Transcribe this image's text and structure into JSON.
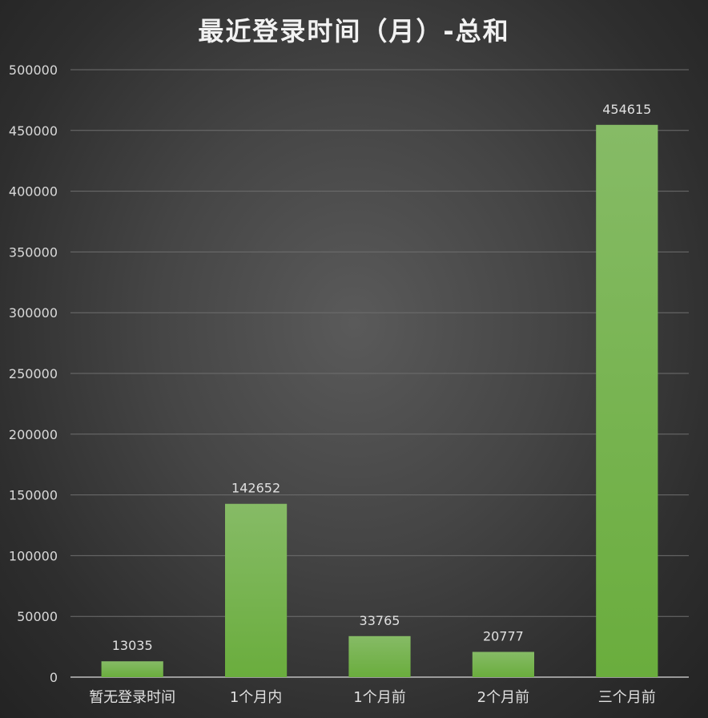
{
  "chart_data": {
    "type": "bar",
    "title": "最近登录时间（月）-总和",
    "categories": [
      "暂无登录时间",
      "1个月内",
      "1个月前",
      "2个月前",
      "三个月前"
    ],
    "values": [
      13035,
      142652,
      33765,
      20777,
      454615
    ],
    "ylim": [
      0,
      500000
    ],
    "yticks": [
      0,
      50000,
      100000,
      150000,
      200000,
      250000,
      300000,
      350000,
      400000,
      450000,
      500000
    ],
    "grid": true,
    "data_labels": true,
    "bar_color": "#6aad3d",
    "bar_color_light": "#86bb66",
    "background": "#3a3a3a"
  }
}
